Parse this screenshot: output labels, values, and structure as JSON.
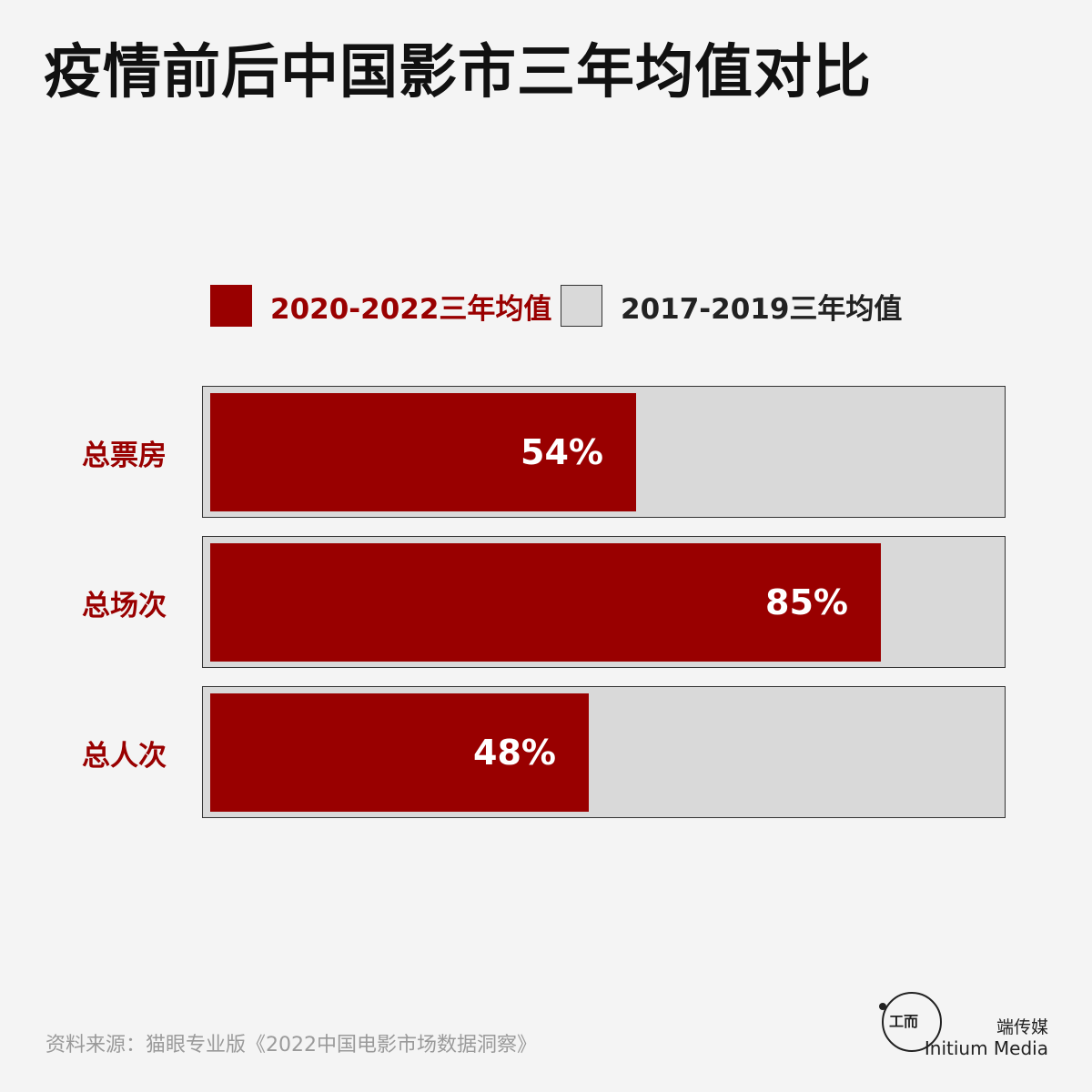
{
  "title": "疫情前后中国影市三年均值对比",
  "colors": {
    "current": "#990000",
    "baseline": "#d9d9d9",
    "label": "#990000",
    "background": "#f4f4f4"
  },
  "legend": [
    {
      "label": "2020-2022三年均值",
      "color": "#990000",
      "text_color": "#990000"
    },
    {
      "label": "2017-2019三年均值",
      "color": "#d9d9d9",
      "text_color": "#222222"
    }
  ],
  "chart_data": {
    "type": "bar",
    "orientation": "horizontal",
    "title": "疫情前后中国影市三年均值对比",
    "categories": [
      "总票房",
      "总场次",
      "总人次"
    ],
    "series": [
      {
        "name": "2020-2022三年均值",
        "values": [
          54,
          85,
          48
        ]
      },
      {
        "name": "2017-2019三年均值",
        "values": [
          100,
          100,
          100
        ]
      }
    ],
    "data_labels": [
      "54%",
      "85%",
      "48%"
    ],
    "xlim": [
      0,
      100
    ],
    "unit": "%",
    "grid": false,
    "legend_position": "top"
  },
  "source": "资料来源：猫眼专业版《2022中国电影市场数据洞察》",
  "brand": {
    "logo_glyph": "工而",
    "name_cn": "端传媒",
    "name_en": "Initium Media"
  }
}
